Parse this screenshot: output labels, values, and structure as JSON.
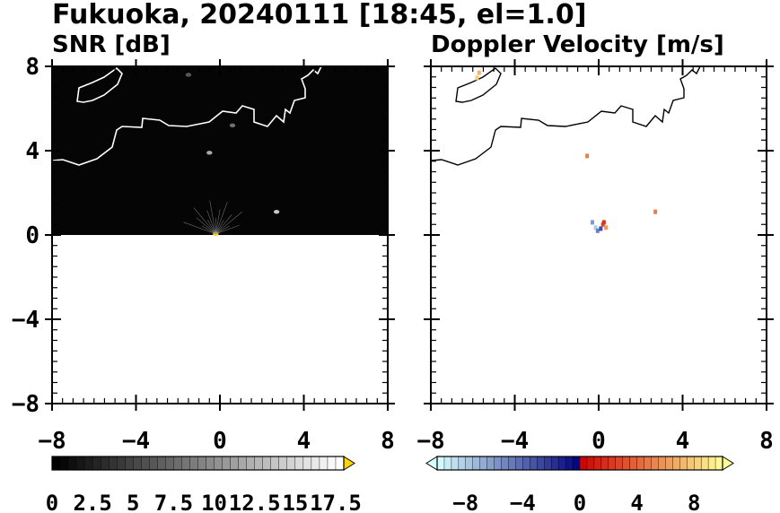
{
  "figure": {
    "title": "Fukuoka, 20240111 [18:45, el=1.0]"
  },
  "chart_data": [
    {
      "type": "heatmap",
      "title": "SNR [dB]",
      "xlim": [
        -8,
        8
      ],
      "ylim": [
        -8,
        8
      ],
      "x_ticks": [
        -8,
        -4,
        0,
        4,
        8
      ],
      "x_tick_labels": [
        "−8",
        "−4",
        "0",
        "4",
        "8"
      ],
      "y_ticks": [
        8,
        4,
        0,
        -4,
        -8
      ],
      "y_tick_labels": [
        "8",
        "4",
        "0",
        "−4",
        "−8"
      ],
      "data_extent_y": [
        0,
        8
      ],
      "background_color": "#050505",
      "highlights": [
        {
          "x": -0.2,
          "y": 0.05,
          "value": 18
        },
        {
          "x": 2.7,
          "y": 1.1,
          "value": 14
        },
        {
          "x": -0.5,
          "y": 3.9,
          "value": 12
        },
        {
          "x": 0.6,
          "y": 5.2,
          "value": 8
        },
        {
          "x": -1.5,
          "y": 7.6,
          "value": 6
        }
      ],
      "colorbar": {
        "min": 0,
        "max": 18,
        "extend": "max",
        "tick_values": [
          0,
          2.5,
          5,
          7.5,
          10,
          12.5,
          15,
          17.5
        ],
        "tick_labels": [
          "0",
          "2.5",
          "5",
          "7.5",
          "10",
          "12.5",
          "15",
          "17.5"
        ],
        "colors": [
          "#000000",
          "#ffffff"
        ],
        "extend_color": "#ffd400"
      }
    },
    {
      "type": "heatmap",
      "title": "Doppler Velocity [m/s]",
      "xlim": [
        -8,
        8
      ],
      "ylim": [
        -8,
        8
      ],
      "x_ticks": [
        -8,
        -4,
        0,
        4,
        8
      ],
      "x_tick_labels": [
        "−8",
        "−4",
        "0",
        "4",
        "8"
      ],
      "y_ticks": [
        8,
        4,
        0,
        -4,
        -8
      ],
      "y_tick_labels": [
        "8",
        "4",
        "0",
        "−4",
        "−8"
      ],
      "points": [
        {
          "x": -5.7,
          "y": 7.7,
          "value": 7
        },
        {
          "x": -5.8,
          "y": 7.45,
          "value": 8
        },
        {
          "x": -0.55,
          "y": 3.75,
          "value": 5
        },
        {
          "x": 2.7,
          "y": 1.1,
          "value": 5
        },
        {
          "x": -0.3,
          "y": 0.6,
          "value": -6
        },
        {
          "x": -0.15,
          "y": 0.35,
          "value": -8
        },
        {
          "x": -0.05,
          "y": 0.2,
          "value": -5
        },
        {
          "x": 0.2,
          "y": 0.5,
          "value": 3
        },
        {
          "x": 0.35,
          "y": 0.35,
          "value": 6
        },
        {
          "x": 0.1,
          "y": 0.3,
          "value": -3
        },
        {
          "x": 0.25,
          "y": 0.6,
          "value": 2
        }
      ],
      "colorbar": {
        "min": -10,
        "max": 10,
        "extend": "both",
        "tick_values": [
          -8,
          -4,
          0,
          4,
          8
        ],
        "tick_labels": [
          "−8",
          "−4",
          "0",
          "4",
          "8"
        ],
        "negative_colors": [
          "#d8ffff",
          "#000080"
        ],
        "positive_colors": [
          "#cc0000",
          "#ffff99"
        ]
      }
    }
  ]
}
